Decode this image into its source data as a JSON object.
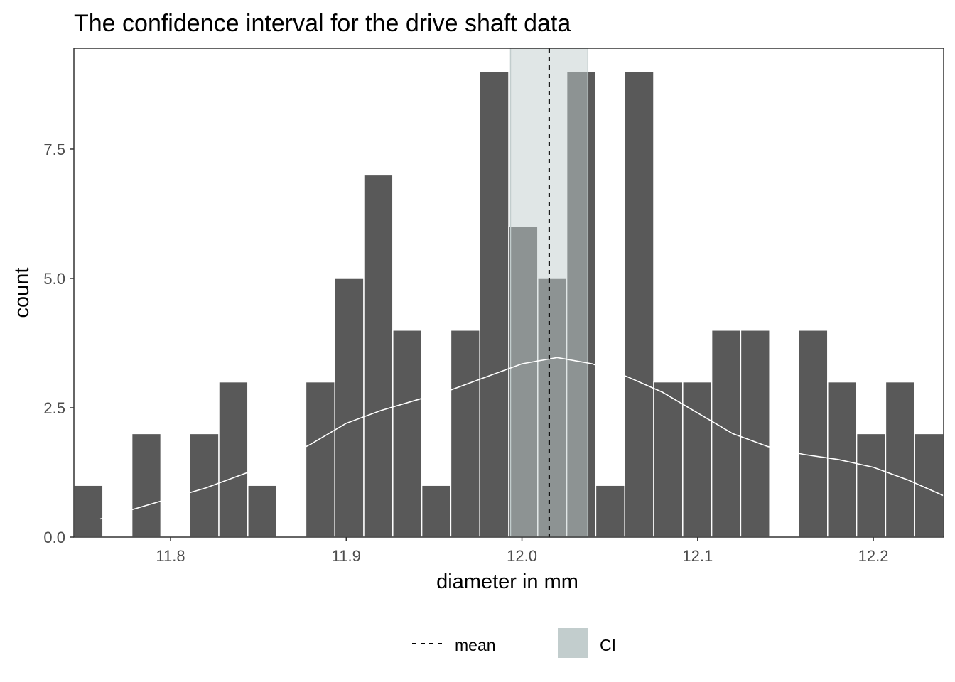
{
  "chart_data": {
    "type": "bar",
    "title": "The confidence interval for the drive shaft data",
    "xlabel": "diameter in mm",
    "ylabel": "count",
    "xlim": [
      11.745,
      12.24
    ],
    "ylim": [
      0,
      9.45
    ],
    "x_ticks": [
      11.8,
      11.9,
      12.0,
      12.1,
      12.2
    ],
    "x_tick_labels": [
      "11.8",
      "11.9",
      "12.0",
      "12.1",
      "12.2"
    ],
    "y_ticks": [
      0,
      2.5,
      5,
      7.5
    ],
    "y_tick_labels": [
      "0.0",
      "2.5",
      "5.0",
      "7.5"
    ],
    "bin_start": 11.745,
    "bin_width": 0.0165,
    "counts": [
      1,
      0,
      2,
      0,
      2,
      3,
      1,
      0,
      3,
      5,
      7,
      4,
      1,
      4,
      9,
      6,
      5,
      9,
      1,
      9,
      3,
      3,
      4,
      4,
      0,
      4,
      3,
      2,
      3,
      2
    ],
    "mean": 12.0155,
    "ci": [
      11.9935,
      12.0375
    ],
    "density_curve": {
      "x": [
        11.76,
        11.78,
        11.8,
        11.82,
        11.84,
        11.86,
        11.88,
        11.9,
        11.92,
        11.94,
        11.96,
        11.98,
        12.0,
        12.02,
        12.04,
        12.06,
        12.08,
        12.1,
        12.12,
        12.14,
        12.16,
        12.18,
        12.2,
        12.22,
        12.24
      ],
      "y": [
        0.35,
        0.55,
        0.75,
        0.95,
        1.2,
        1.45,
        1.8,
        2.2,
        2.45,
        2.65,
        2.85,
        3.1,
        3.35,
        3.47,
        3.35,
        3.1,
        2.8,
        2.4,
        2.0,
        1.75,
        1.6,
        1.5,
        1.35,
        1.1,
        0.8
      ]
    },
    "legend": {
      "placement": "bottom",
      "items": [
        {
          "label": "mean",
          "kind": "dashed-line"
        },
        {
          "label": "CI",
          "kind": "fill"
        }
      ]
    },
    "colors": {
      "bar": "#595959",
      "bar_outline": "#ffffff",
      "ci_fill": "#c2cdcd",
      "ci_opacity": 0.5,
      "mean_line": "#000000",
      "density": "#ffffff",
      "panel_border": "#333333",
      "tick": "#333333"
    }
  }
}
